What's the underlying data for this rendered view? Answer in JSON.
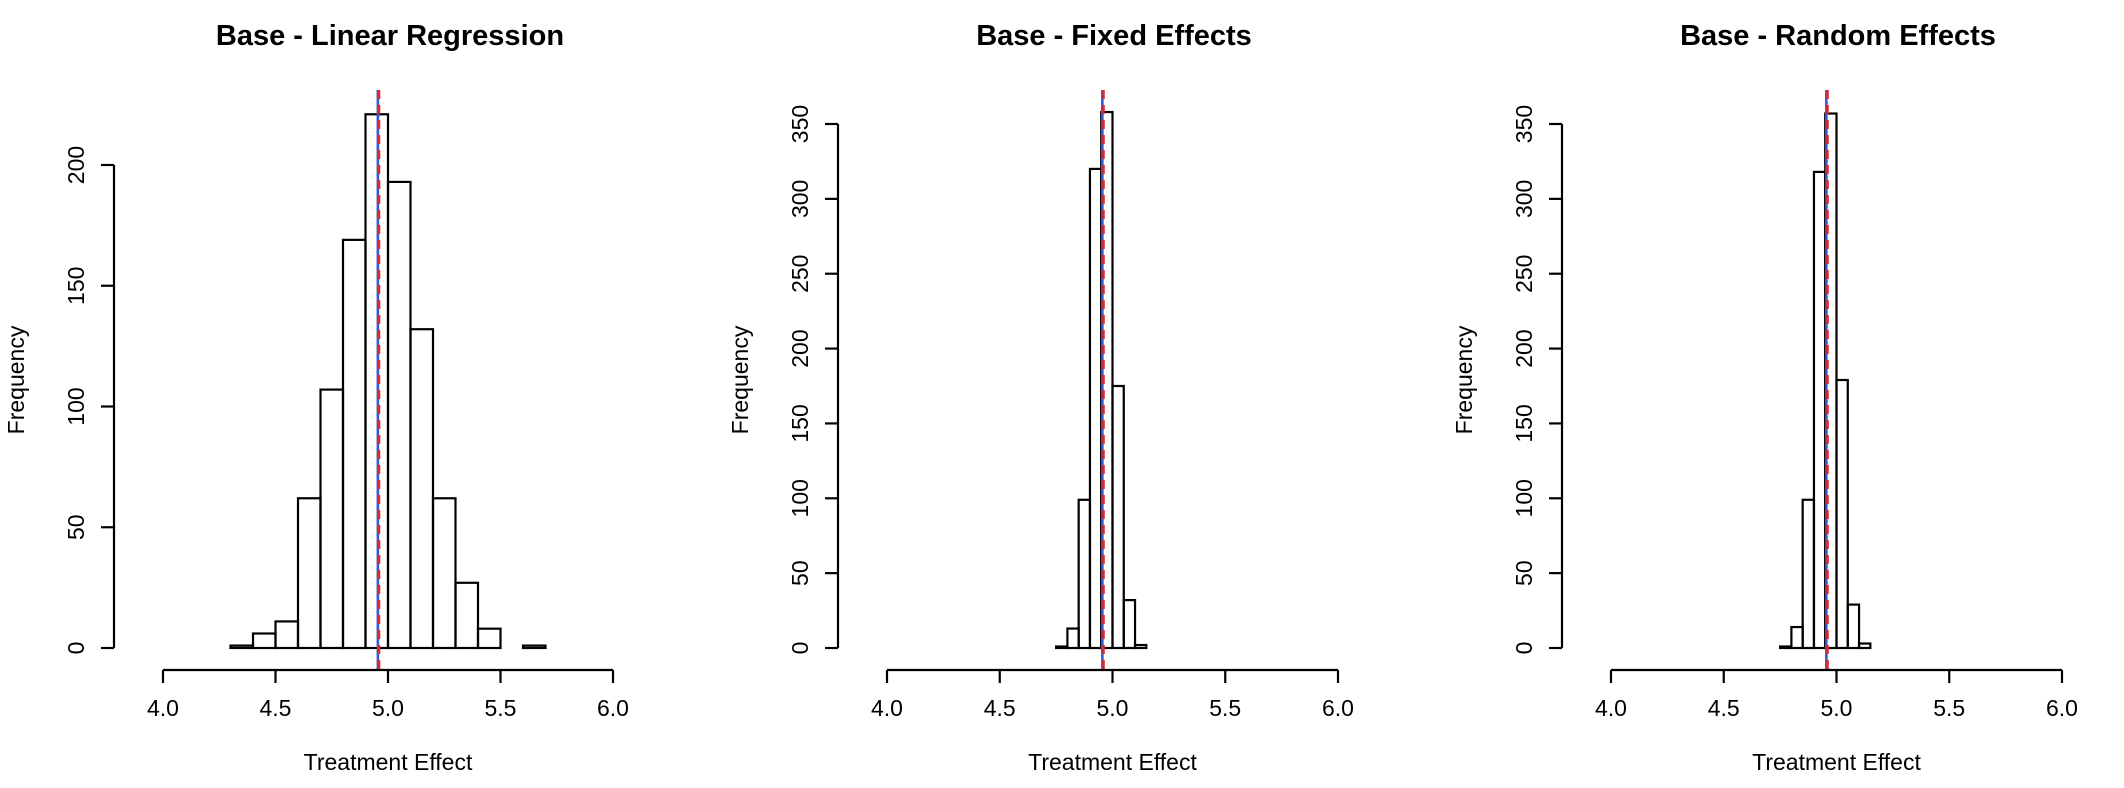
{
  "chart_data": [
    {
      "type": "histogram",
      "title": "Base - Linear Regression",
      "xlabel": "Treatment Effect",
      "ylabel": "Frequency",
      "xlim": [
        4.0,
        6.0
      ],
      "xticks": [
        "4.0",
        "4.5",
        "5.0",
        "5.5",
        "6.0"
      ],
      "ylim": [
        0,
        220
      ],
      "yticks": [
        "0",
        "50",
        "100",
        "150",
        "200"
      ],
      "bin_width": 0.1,
      "bins": [
        {
          "x0": 4.3,
          "x1": 4.4,
          "count": 1
        },
        {
          "x0": 4.4,
          "x1": 4.5,
          "count": 6
        },
        {
          "x0": 4.5,
          "x1": 4.6,
          "count": 11
        },
        {
          "x0": 4.6,
          "x1": 4.7,
          "count": 62
        },
        {
          "x0": 4.7,
          "x1": 4.8,
          "count": 107
        },
        {
          "x0": 4.8,
          "x1": 4.9,
          "count": 169
        },
        {
          "x0": 4.9,
          "x1": 5.0,
          "count": 221
        },
        {
          "x0": 5.0,
          "x1": 5.1,
          "count": 193
        },
        {
          "x0": 5.1,
          "x1": 5.2,
          "count": 132
        },
        {
          "x0": 5.2,
          "x1": 5.3,
          "count": 62
        },
        {
          "x0": 5.3,
          "x1": 5.4,
          "count": 27
        },
        {
          "x0": 5.4,
          "x1": 5.5,
          "count": 8
        },
        {
          "x0": 5.5,
          "x1": 5.6,
          "count": 0
        },
        {
          "x0": 5.6,
          "x1": 5.7,
          "count": 1
        }
      ],
      "reference_lines": [
        {
          "x": 4.955,
          "color": "#2e5bd8",
          "style": "solid"
        },
        {
          "x": 4.96,
          "color": "#e0262a",
          "style": "dashed"
        }
      ]
    },
    {
      "type": "histogram",
      "title": "Base - Fixed Effects",
      "xlabel": "Treatment Effect",
      "ylabel": "Frequency",
      "xlim": [
        4.0,
        6.0
      ],
      "xticks": [
        "4.0",
        "4.5",
        "5.0",
        "5.5",
        "6.0"
      ],
      "ylim": [
        0,
        350
      ],
      "yticks": [
        "0",
        "50",
        "100",
        "150",
        "200",
        "250",
        "300",
        "350"
      ],
      "bin_width": 0.05,
      "bins": [
        {
          "x0": 4.75,
          "x1": 4.8,
          "count": 1
        },
        {
          "x0": 4.8,
          "x1": 4.85,
          "count": 13
        },
        {
          "x0": 4.85,
          "x1": 4.9,
          "count": 99
        },
        {
          "x0": 4.9,
          "x1": 4.95,
          "count": 320
        },
        {
          "x0": 4.95,
          "x1": 5.0,
          "count": 358
        },
        {
          "x0": 5.0,
          "x1": 5.05,
          "count": 175
        },
        {
          "x0": 5.05,
          "x1": 5.1,
          "count": 32
        },
        {
          "x0": 5.1,
          "x1": 5.15,
          "count": 2
        }
      ],
      "reference_lines": [
        {
          "x": 4.955,
          "color": "#2e5bd8",
          "style": "solid"
        },
        {
          "x": 4.96,
          "color": "#e0262a",
          "style": "dashed"
        }
      ]
    },
    {
      "type": "histogram",
      "title": "Base - Random Effects",
      "xlabel": "Treatment Effect",
      "ylabel": "Frequency",
      "xlim": [
        4.0,
        6.0
      ],
      "xticks": [
        "4.0",
        "4.5",
        "5.0",
        "5.5",
        "6.0"
      ],
      "ylim": [
        0,
        350
      ],
      "yticks": [
        "0",
        "50",
        "100",
        "150",
        "200",
        "250",
        "300",
        "350"
      ],
      "bin_width": 0.05,
      "bins": [
        {
          "x0": 4.75,
          "x1": 4.8,
          "count": 1
        },
        {
          "x0": 4.8,
          "x1": 4.85,
          "count": 14
        },
        {
          "x0": 4.85,
          "x1": 4.9,
          "count": 99
        },
        {
          "x0": 4.9,
          "x1": 4.95,
          "count": 318
        },
        {
          "x0": 4.95,
          "x1": 5.0,
          "count": 357
        },
        {
          "x0": 5.0,
          "x1": 5.05,
          "count": 179
        },
        {
          "x0": 5.05,
          "x1": 5.1,
          "count": 29
        },
        {
          "x0": 5.1,
          "x1": 5.15,
          "count": 3
        }
      ],
      "reference_lines": [
        {
          "x": 4.955,
          "color": "#2e5bd8",
          "style": "solid"
        },
        {
          "x": 4.96,
          "color": "#e0262a",
          "style": "dashed"
        }
      ]
    }
  ]
}
